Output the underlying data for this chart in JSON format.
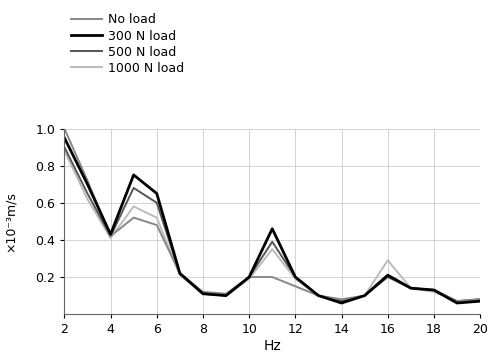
{
  "x": [
    2,
    3,
    4,
    5,
    6,
    7,
    8,
    9,
    10,
    11,
    12,
    13,
    14,
    15,
    16,
    17,
    18,
    19,
    20
  ],
  "no_load": [
    1.0,
    0.72,
    0.42,
    0.52,
    0.48,
    0.22,
    0.12,
    0.11,
    0.2,
    0.2,
    0.15,
    0.1,
    0.08,
    0.1,
    0.21,
    0.14,
    0.13,
    0.07,
    0.08
  ],
  "load_300": [
    0.95,
    0.7,
    0.43,
    0.75,
    0.65,
    0.22,
    0.11,
    0.1,
    0.2,
    0.46,
    0.2,
    0.1,
    0.06,
    0.1,
    0.21,
    0.14,
    0.13,
    0.06,
    0.07
  ],
  "load_500": [
    0.9,
    0.65,
    0.42,
    0.68,
    0.6,
    0.22,
    0.11,
    0.1,
    0.2,
    0.39,
    0.2,
    0.1,
    0.07,
    0.1,
    0.2,
    0.14,
    0.13,
    0.07,
    0.08
  ],
  "load_1000": [
    0.88,
    0.62,
    0.41,
    0.58,
    0.52,
    0.21,
    0.11,
    0.1,
    0.19,
    0.35,
    0.19,
    0.1,
    0.07,
    0.1,
    0.29,
    0.14,
    0.12,
    0.07,
    0.08
  ],
  "colors": {
    "no_load": "#888888",
    "load_300": "#000000",
    "load_500": "#555555",
    "load_1000": "#bbbbbb"
  },
  "linewidths": {
    "no_load": 1.4,
    "load_300": 2.0,
    "load_500": 1.4,
    "load_1000": 1.4
  },
  "labels": {
    "no_load": "No load",
    "load_300": "300 N load",
    "load_500": "500 N load",
    "load_1000": "1000 N load"
  },
  "ylabel_top": "×10⁻³m/s",
  "xlabel": "Hz",
  "xlim": [
    2,
    20
  ],
  "ylim": [
    0,
    1.0
  ],
  "yticks": [
    0.2,
    0.4,
    0.6,
    0.8,
    1.0
  ],
  "xticks": [
    2,
    4,
    6,
    8,
    10,
    12,
    14,
    16,
    18,
    20
  ],
  "background_color": "#ffffff",
  "legend_order": [
    "no_load",
    "load_300",
    "load_500",
    "load_1000"
  ],
  "plot_order": [
    "load_1000",
    "load_500",
    "no_load",
    "load_300"
  ]
}
